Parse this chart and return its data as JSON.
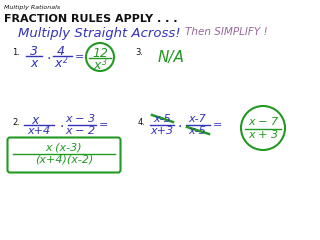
{
  "bg_color": "#ffffff",
  "top_label": "Multiply Rationals",
  "heading": "FRACTION RULES APPLY . . .",
  "subheading1": "Multiply Straight Across!",
  "subheading2": "Then SIMPLIFY !",
  "blue": "#3333bb",
  "green": "#229922",
  "purple": "#996699",
  "black": "#111111"
}
